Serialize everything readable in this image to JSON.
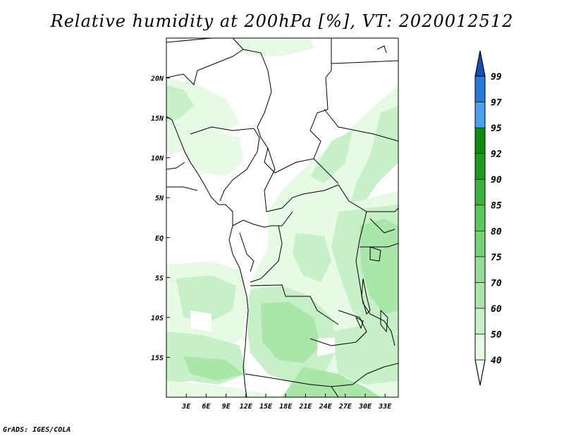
{
  "title": "Relative humidity at 200hPa [%], VT: 2020012512",
  "credit": "GrADS: IGES/COLA",
  "map": {
    "lon_range": [
      0,
      35
    ],
    "lat_range": [
      -20,
      25
    ],
    "lon_ticks": [
      {
        "value": 3,
        "label": "3E"
      },
      {
        "value": 6,
        "label": "6E"
      },
      {
        "value": 9,
        "label": "9E"
      },
      {
        "value": 12,
        "label": "12E"
      },
      {
        "value": 15,
        "label": "15E"
      },
      {
        "value": 18,
        "label": "18E"
      },
      {
        "value": 21,
        "label": "21E"
      },
      {
        "value": 24,
        "label": "24E"
      },
      {
        "value": 27,
        "label": "27E"
      },
      {
        "value": 30,
        "label": "30E"
      },
      {
        "value": 33,
        "label": "33E"
      }
    ],
    "lat_ticks": [
      {
        "value": 20,
        "label": "20N"
      },
      {
        "value": 15,
        "label": "15N"
      },
      {
        "value": 10,
        "label": "10N"
      },
      {
        "value": 5,
        "label": "5N"
      },
      {
        "value": 0,
        "label": "EQ"
      },
      {
        "value": -5,
        "label": "5S"
      },
      {
        "value": -10,
        "label": "10S"
      },
      {
        "value": -15,
        "label": "15S"
      }
    ]
  },
  "colorbar": {
    "levels": [
      "40",
      "50",
      "60",
      "70",
      "75",
      "80",
      "85",
      "90",
      "92",
      "95",
      "97",
      "99"
    ],
    "colors": [
      "#ffffff",
      "#e6fae6",
      "#c8f0c8",
      "#aae6aa",
      "#96dc96",
      "#78d278",
      "#5ac85a",
      "#3cb43c",
      "#1e9a1e",
      "#0f8c0f",
      "#4ba0ee",
      "#2a78dc",
      "#1450b4"
    ]
  },
  "colors": {
    "light_green": "#e6fae6",
    "mid_green": "#c8f0c8",
    "green": "#aae6aa"
  }
}
